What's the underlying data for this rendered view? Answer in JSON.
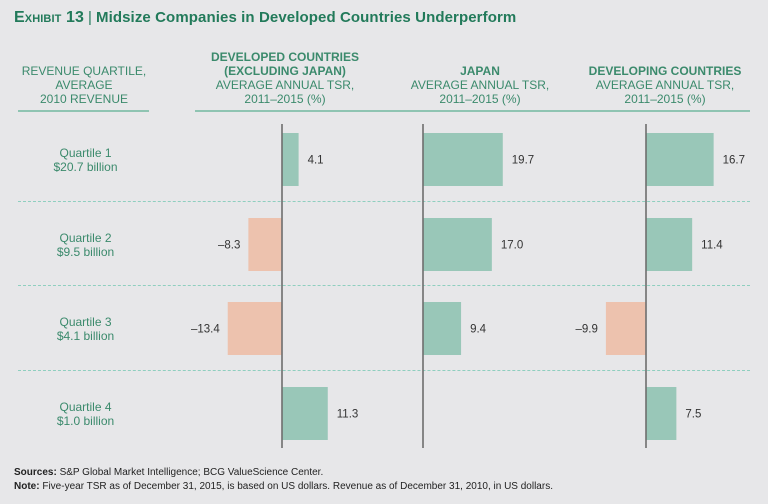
{
  "title": {
    "exhibit": "Exhibit 13",
    "separator": "|",
    "text": "Midsize Companies in Developed Countries Underperform"
  },
  "row_header": [
    "REVENUE QUARTILE,",
    "AVERAGE",
    "2010 REVENUE"
  ],
  "panels": [
    {
      "name_lines": [
        "DEVELOPED COUNTRIES",
        "(EXCLUDING JAPAN)"
      ],
      "sub_lines": [
        "AVERAGE ANNUAL TSR,",
        "2011–2015 (%)"
      ]
    },
    {
      "name_lines": [
        "JAPAN"
      ],
      "sub_lines": [
        "AVERAGE ANNUAL TSR,",
        "2011–2015 (%)"
      ]
    },
    {
      "name_lines": [
        "DEVELOPING COUNTRIES"
      ],
      "sub_lines": [
        "AVERAGE ANNUAL TSR,",
        "2011–2015 (%)"
      ]
    }
  ],
  "rows": [
    {
      "label": "Quartile 1",
      "revenue": "$20.7 billion"
    },
    {
      "label": "Quartile 2",
      "revenue": "$9.5 billion"
    },
    {
      "label": "Quartile 3",
      "revenue": "$4.1 billion"
    },
    {
      "label": "Quartile 4",
      "revenue": "$1.0 billion"
    }
  ],
  "colors": {
    "positive": "#99c7b8",
    "negative": "#edc2ae",
    "axis": "#6e6e6e",
    "accent": "#227a5a"
  },
  "footer": {
    "sources_label": "Sources:",
    "sources_text": "S&P Global Market Intelligence; BCG ValueScience Center.",
    "note_label": "Note:",
    "note_text": "Five-year TSR as of December 31, 2015, is based on US dollars. Revenue as of December 31, 2010, in US dollars."
  },
  "chart_data": {
    "type": "bar",
    "orientation": "horizontal",
    "title": "Midsize Companies in Developed Countries Underperform",
    "categories": [
      "Quartile 1 ($20.7 billion)",
      "Quartile 2 ($9.5 billion)",
      "Quartile 3 ($4.1 billion)",
      "Quartile 4 ($1.0 billion)"
    ],
    "series": [
      {
        "name": "Developed countries (excluding Japan) — average annual TSR, 2011–2015 (%)",
        "values": [
          4.1,
          -8.3,
          -13.4,
          11.3
        ],
        "labels": [
          "4.1",
          "–8.3",
          "–13.4",
          "11.3"
        ]
      },
      {
        "name": "Japan — average annual TSR, 2011–2015 (%)",
        "values": [
          19.7,
          17.0,
          9.4,
          null
        ],
        "labels": [
          "19.7",
          "17.0",
          "9.4",
          ""
        ]
      },
      {
        "name": "Developing countries — average annual TSR, 2011–2015 (%)",
        "values": [
          16.7,
          11.4,
          -9.9,
          7.5
        ],
        "labels": [
          "16.7",
          "11.4",
          "–9.9",
          "7.5"
        ]
      }
    ],
    "xlabel": "Average annual TSR, 2011–2015 (%)",
    "ylabel": "Revenue quartile, average 2010 revenue",
    "grid": false,
    "legend": "none"
  }
}
